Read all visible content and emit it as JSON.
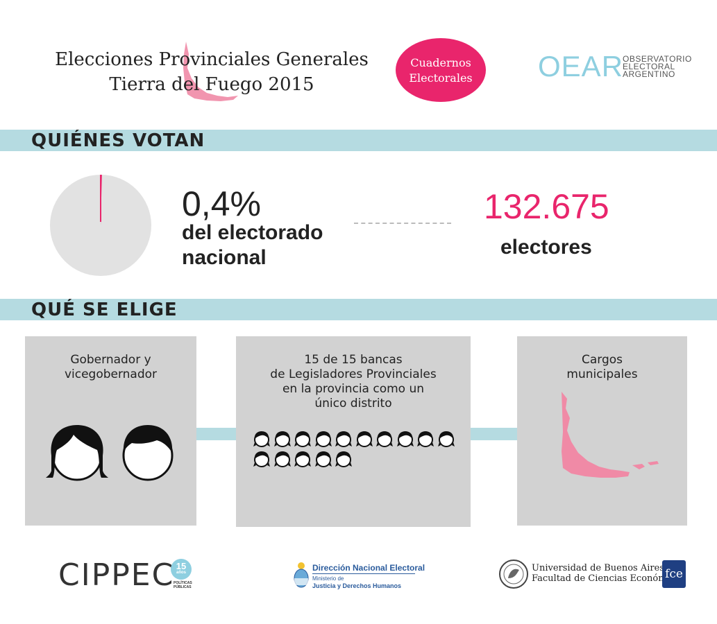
{
  "header": {
    "title_line1": "Elecciones Provinciales Generales",
    "title_line2": "Tierra del Fuego 2015",
    "badge_line1": "Cuadernos",
    "badge_line2": "Electorales",
    "oear_mark": "OEAR",
    "oear_line1": "OBSERVATORIO",
    "oear_line2": "ELECTORAL",
    "oear_line3": "ARGENTINO"
  },
  "sections": {
    "who_votes": "QUIÉNES VOTAN",
    "what_elected": "QUÉ SE ELIGE"
  },
  "stats": {
    "percentage": "0,4%",
    "percentage_label_line1": "del electorado",
    "percentage_label_line2": "nacional",
    "share_fraction": 0.004,
    "electors_count": "132.675",
    "electors_label": "electores"
  },
  "boxes": [
    {
      "lines": [
        "Gobernador y",
        "vicegobernador"
      ],
      "icon_count": 2
    },
    {
      "lines": [
        "15 de 15 bancas",
        "de Legisladores Provinciales",
        "en la provincia como un",
        "único distrito"
      ],
      "icon_count": 15
    },
    {
      "lines": [
        "Cargos",
        "municipales"
      ],
      "icon": "province-map-icon"
    }
  ],
  "footer": {
    "cippec": "CIPPEC",
    "cippec_years": "15",
    "cippec_years_word": "años",
    "cippec_sub1": "POLÍTICAS",
    "cippec_sub2": "PÚBLICAS",
    "dne_title": "Dirección Nacional Electoral",
    "dne_line1": "Ministerio de",
    "dne_line2": "Justicia y Derechos Humanos",
    "uba_line1": "Universidad de Buenos Aires",
    "uba_line2": "Facultad de Ciencias Económicas",
    "fce": "fce"
  },
  "colors": {
    "accent_pink": "#e9256c",
    "band_blue": "#b5dbe1",
    "box_gray": "#d2d2d2",
    "map_pink": "#f08aa6"
  }
}
